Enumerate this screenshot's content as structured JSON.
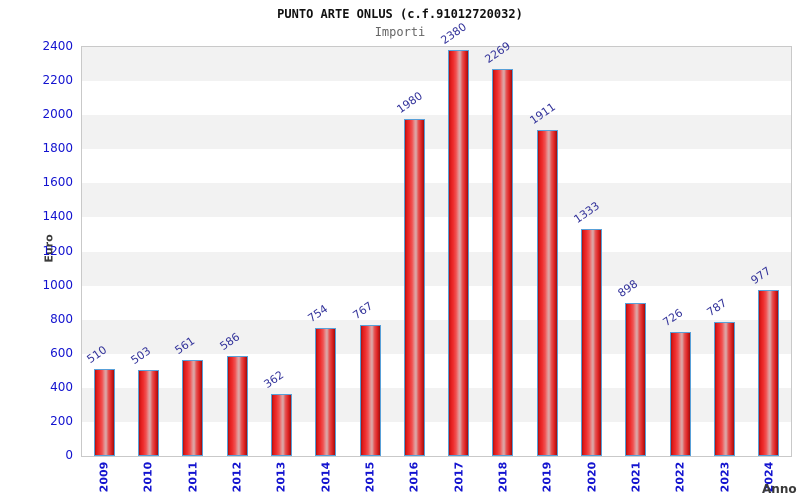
{
  "header": {
    "title": "PUNTO ARTE ONLUS (c.f.91012720032)",
    "subtitle": "Importi"
  },
  "chart_data": {
    "type": "bar",
    "title": "PUNTO ARTE ONLUS (c.f.91012720032)",
    "subtitle": "Importi",
    "xlabel": "Anno",
    "ylabel": "Euro",
    "categories": [
      "2009",
      "2010",
      "2011",
      "2012",
      "2013",
      "2014",
      "2015",
      "2016",
      "2017",
      "2018",
      "2019",
      "2020",
      "2021",
      "2022",
      "2023",
      "2024"
    ],
    "values": [
      510,
      503,
      561,
      586,
      362,
      754,
      767,
      1980,
      2380,
      2269,
      1911,
      1333,
      898,
      726,
      787,
      977
    ],
    "ylim": [
      0,
      2400
    ],
    "ytick_step": 200,
    "legend_position": "none",
    "grid": "horizontal-alternating-bands",
    "colors": {
      "bar_fill": "#ee2c2c",
      "bar_highlight": "#d9abab",
      "bar_border": "#58a0d8",
      "axis_text": "#1313cf",
      "value_label": "#32329a",
      "band_gray": "#f2f2f2",
      "plot_border": "#c9c9c9",
      "title_text": "#111111",
      "subtitle_text": "#666666",
      "axis_title_text": "#3a3a3a"
    }
  }
}
